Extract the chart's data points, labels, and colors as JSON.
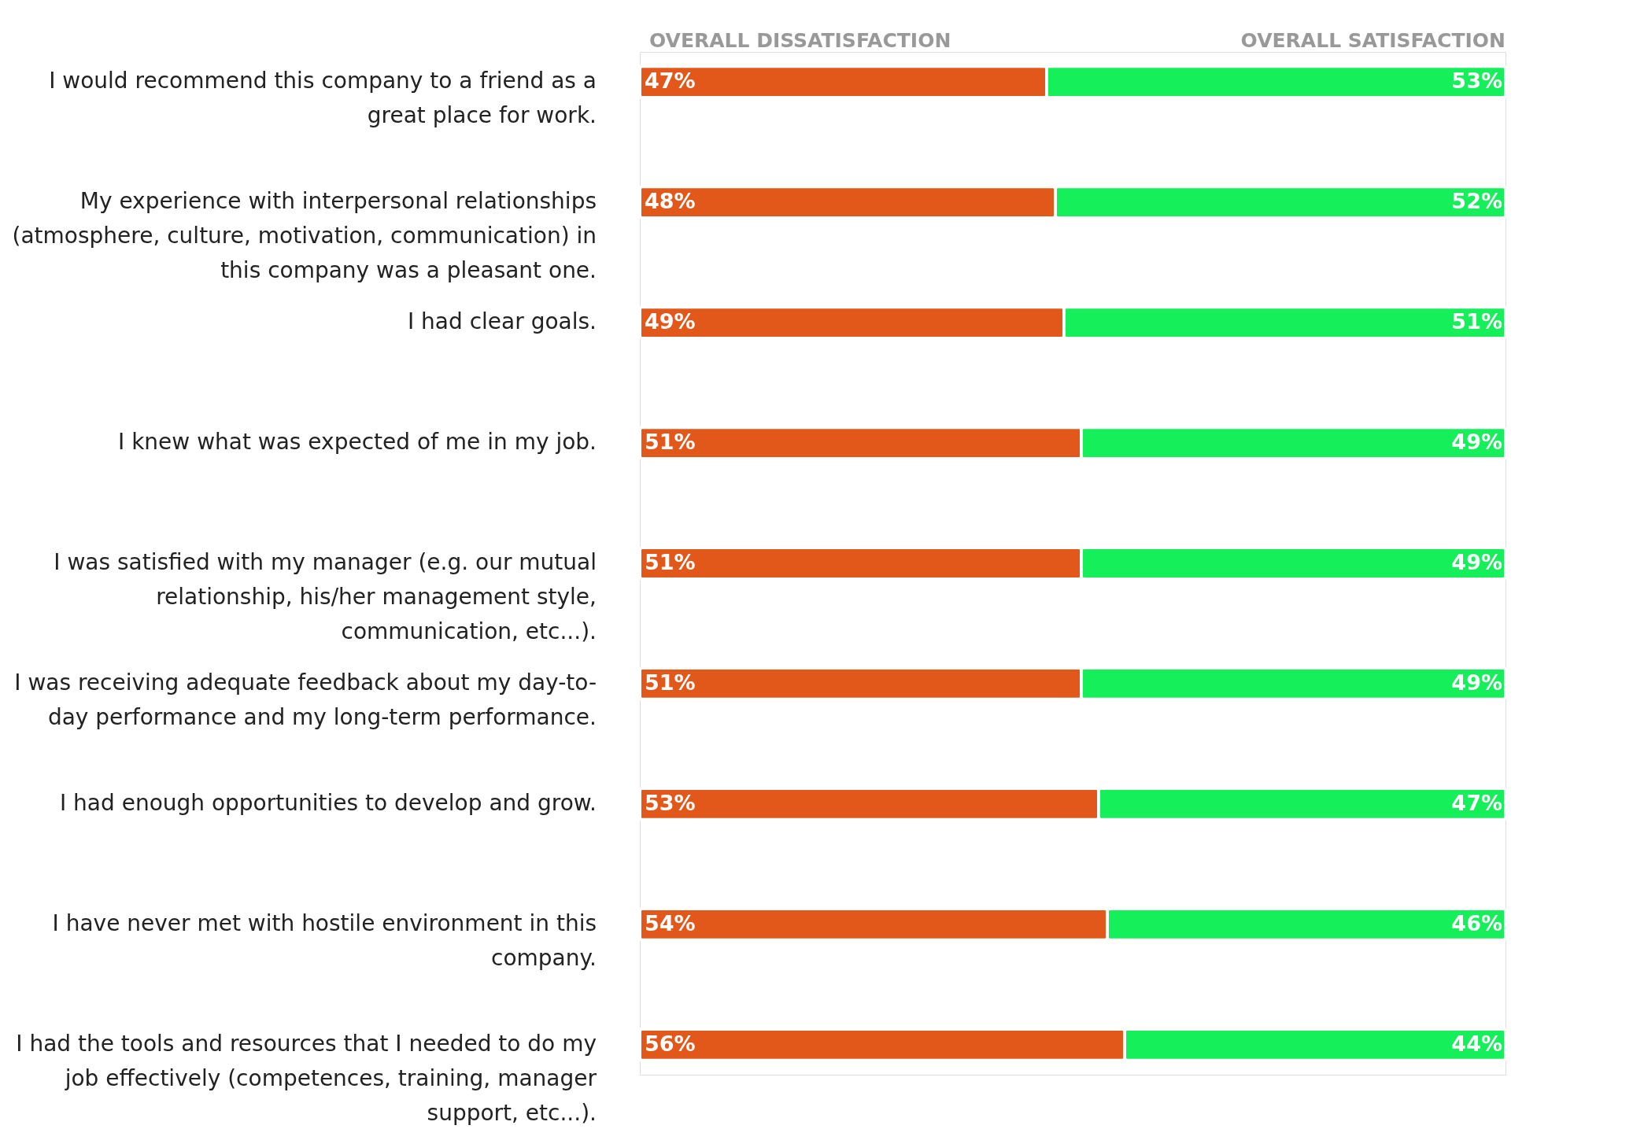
{
  "chart_data": {
    "type": "bar",
    "orientation": "horizontal",
    "stacked": true,
    "legend": "top",
    "categories": [
      "I would recommend this company to a friend as a great place for work.",
      "My experience with interpersonal relationships (atmosphere, culture, motivation, communication) in this company was a pleasant one.",
      "I had clear goals.",
      "I knew what was expected of me in my job.",
      "I was satisfied with my manager (e.g. our mutual relationship, his/her management style, communication, etc...).",
      "I was receiving adequate feedback about my day-to-day performance and my long-term performance.",
      "I had enough opportunities to develop and grow.",
      "I have never met with hostile environment in this company.",
      "I had the tools and resources that I needed to do my job effectively (competences, training, manager support, etc...)."
    ],
    "series": [
      {
        "name": "OVERALL DISSATISFACTION",
        "color": "#e2581b",
        "values": [
          47,
          48,
          49,
          51,
          51,
          51,
          53,
          54,
          56
        ],
        "value_labels": [
          "47%",
          "48%",
          "49%",
          "51%",
          "51%",
          "51%",
          "53%",
          "54%",
          "56%"
        ]
      },
      {
        "name": "OVERALL SATISFACTION",
        "color": "#14ef5a",
        "values": [
          53,
          52,
          51,
          49,
          49,
          49,
          47,
          46,
          44
        ],
        "value_labels": [
          "53%",
          "52%",
          "51%",
          "49%",
          "49%",
          "49%",
          "47%",
          "46%",
          "44%"
        ]
      }
    ]
  }
}
